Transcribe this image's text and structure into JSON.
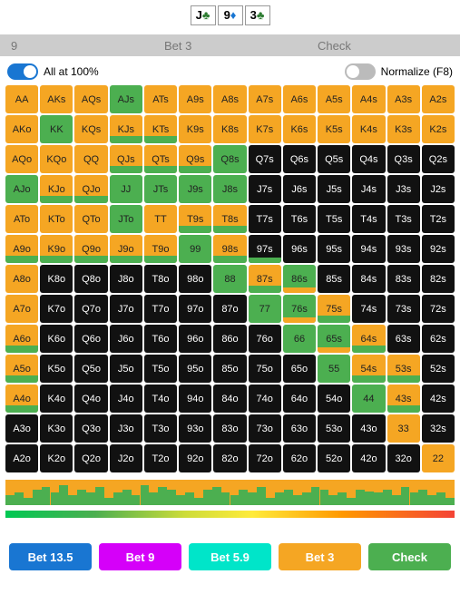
{
  "board": [
    {
      "rank": "J",
      "suit": "♣",
      "color": "#2e7d32"
    },
    {
      "rank": "9",
      "suit": "♦",
      "color": "#1976d2"
    },
    {
      "rank": "3",
      "suit": "♣",
      "color": "#2e7d32"
    }
  ],
  "tabs": [
    "9",
    "Bet 3",
    "Check"
  ],
  "controls": {
    "all100_label": "All at 100%",
    "all100_on": true,
    "normalize_label": "Normalize (F8)",
    "normalize_on": false
  },
  "colors": {
    "orange": "#f5a623",
    "green": "#4caf50",
    "black": "#111",
    "text_light": "#fff",
    "text_dark": "#222"
  },
  "ranks": [
    "A",
    "K",
    "Q",
    "J",
    "T",
    "9",
    "8",
    "7",
    "6",
    "5",
    "4",
    "3",
    "2"
  ],
  "cell_style": {
    "0": {
      "bg": "orange",
      "fg": "dark"
    },
    "1": {
      "bg": "green",
      "fg": "dark"
    },
    "2": {
      "bg": "black",
      "fg": "light"
    },
    "3": {
      "bg": "orange",
      "fg": "dark",
      "bar_color": "green",
      "bar_h": 0.25
    },
    "4": {
      "bg": "black",
      "fg": "light",
      "bar_color": "green",
      "bar_h": 0.2
    },
    "5": {
      "bg": "green",
      "fg": "dark",
      "bar_color": "orange",
      "bar_h": 0.2
    },
    "6": {
      "bg": "black",
      "fg": "light",
      "bar_color": "orange",
      "bar_h": 0.2
    }
  },
  "grid_styles": [
    [
      0,
      0,
      0,
      1,
      0,
      0,
      0,
      0,
      0,
      0,
      0,
      0,
      0
    ],
    [
      0,
      1,
      0,
      3,
      3,
      0,
      0,
      0,
      0,
      0,
      0,
      0,
      0
    ],
    [
      0,
      0,
      0,
      3,
      3,
      3,
      1,
      2,
      2,
      2,
      2,
      2,
      2
    ],
    [
      1,
      3,
      3,
      1,
      1,
      1,
      1,
      2,
      2,
      2,
      2,
      2,
      2
    ],
    [
      0,
      0,
      0,
      1,
      0,
      3,
      3,
      2,
      2,
      2,
      2,
      2,
      2
    ],
    [
      3,
      3,
      3,
      3,
      3,
      1,
      3,
      4,
      2,
      2,
      2,
      2,
      2
    ],
    [
      0,
      2,
      2,
      2,
      2,
      2,
      1,
      3,
      5,
      2,
      2,
      2,
      2
    ],
    [
      0,
      2,
      2,
      2,
      2,
      2,
      2,
      1,
      5,
      3,
      2,
      2,
      2
    ],
    [
      3,
      2,
      2,
      2,
      2,
      2,
      2,
      2,
      1,
      5,
      3,
      2,
      2
    ],
    [
      3,
      2,
      2,
      2,
      2,
      2,
      2,
      2,
      2,
      1,
      3,
      3,
      2
    ],
    [
      3,
      2,
      2,
      2,
      2,
      2,
      2,
      2,
      2,
      2,
      1,
      3,
      2
    ],
    [
      2,
      2,
      2,
      2,
      2,
      2,
      2,
      2,
      2,
      2,
      2,
      0,
      2
    ],
    [
      2,
      2,
      2,
      2,
      2,
      2,
      2,
      2,
      2,
      2,
      2,
      2,
      0
    ]
  ],
  "actions": [
    {
      "label": "Bet 13.5",
      "color": "#1976d2"
    },
    {
      "label": "Bet 9",
      "color": "#d500f9"
    },
    {
      "label": "Bet 5.9",
      "color": "#00e5c9"
    },
    {
      "label": "Bet 3",
      "color": "#f5a623"
    },
    {
      "label": "Check",
      "color": "#4caf50"
    }
  ],
  "freq_bg": "#f5a623",
  "freq_fg": "#4caf50",
  "freq_bars": [
    0.4,
    0.5,
    0.3,
    0.6,
    0.7,
    0.5,
    0.8,
    0.4,
    0.6,
    0.5,
    0.7,
    0.3,
    0.5,
    0.6,
    0.4,
    0.8,
    0.5,
    0.7,
    0.6,
    0.4,
    0.5,
    0.3,
    0.6,
    0.7,
    0.5,
    0.4,
    0.6,
    0.5,
    0.7,
    0.3,
    0.5,
    0.6,
    0.4,
    0.5,
    0.7,
    0.6,
    0.4,
    0.5,
    0.3,
    0.6,
    0.55,
    0.5,
    0.6,
    0.4,
    0.7,
    0.5,
    0.6,
    0.4,
    0.5,
    0.3
  ]
}
